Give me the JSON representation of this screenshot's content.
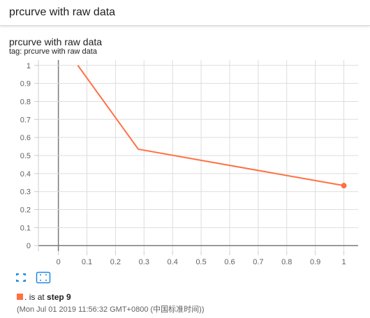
{
  "header": {
    "title": "prcurve with raw data"
  },
  "card": {
    "title": "prcurve with raw data",
    "tag_prefix": "tag:",
    "tag": "prcurve with raw data"
  },
  "chart_data": {
    "type": "line",
    "x_ticks": [
      "0",
      "0.1",
      "0.2",
      "0.3",
      "0.4",
      "0.5",
      "0.6",
      "0.7",
      "0.8",
      "0.9",
      "1"
    ],
    "y_ticks": [
      "0",
      "0.1",
      "0.2",
      "0.3",
      "0.4",
      "0.5",
      "0.6",
      "0.7",
      "0.8",
      "0.9",
      "1"
    ],
    "xlim": [
      -0.07,
      1.05
    ],
    "ylim": [
      -0.03,
      1.03
    ],
    "grid": true,
    "series": [
      {
        "color": "#ff7043",
        "x": [
          0.068,
          0.28,
          1.0
        ],
        "y": [
          1.0,
          0.535,
          0.333
        ]
      }
    ]
  },
  "toolbar": {
    "fullscreen_icon": "fullscreen-icon",
    "fit_domain_icon": "fit-domain-icon"
  },
  "legend": {
    "color": "#ff7043",
    "run": ".",
    "is_at": "is at",
    "step": "step 9",
    "timestamp": "(Mon Jul 01 2019 11:56:32 GMT+0800 (中国标准时间))"
  }
}
